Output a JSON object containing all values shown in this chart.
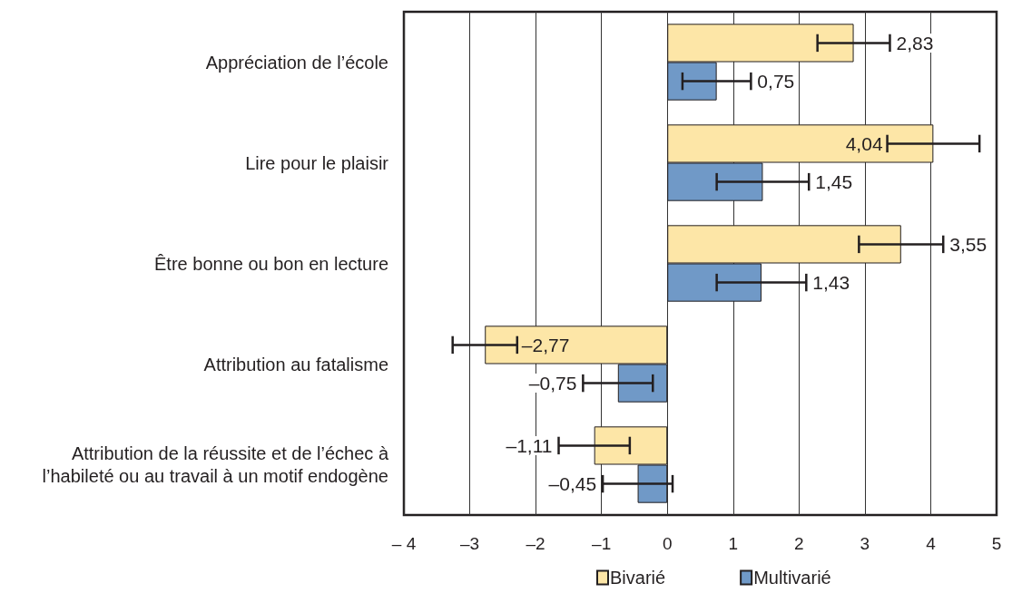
{
  "chart_data": {
    "type": "bar",
    "orientation": "horizontal",
    "categories": [
      "Appréciation de l’école",
      "Lire pour le plaisir",
      "Être bonne ou bon en lecture",
      "Attribution au fatalisme",
      "Attribution de la réussite et de l’échec à l’habileté ou au travail à un motif endogène"
    ],
    "series": [
      {
        "name": "Bivarié",
        "color": "#fde6a7",
        "values": [
          2.83,
          4.04,
          3.55,
          -2.77,
          -1.11
        ],
        "errors": [
          0.55,
          0.7,
          0.64,
          0.49,
          0.54
        ],
        "value_labels": [
          "2,83",
          "4,04",
          "3,55",
          "–2,77",
          "–1,11"
        ]
      },
      {
        "name": "Multivarié",
        "color": "#7099c7",
        "values": [
          0.75,
          1.45,
          1.43,
          -0.75,
          -0.45
        ],
        "errors": [
          0.52,
          0.7,
          0.68,
          0.53,
          0.53
        ],
        "value_labels": [
          "0,75",
          "1,45",
          "1,43",
          "–0,75",
          "–0,45"
        ]
      }
    ],
    "xlim": [
      -4,
      5
    ],
    "xticks": [
      {
        "value": -4,
        "label": "– 4"
      },
      {
        "value": -3,
        "label": "–3"
      },
      {
        "value": -2,
        "label": "–2"
      },
      {
        "value": -1,
        "label": "–1"
      },
      0,
      1,
      2,
      3,
      4,
      5
    ],
    "grid": "x",
    "legend": "bottom"
  }
}
